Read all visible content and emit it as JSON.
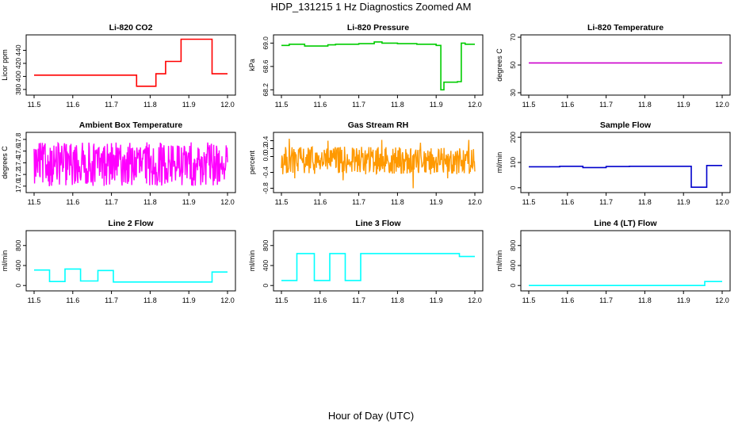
{
  "figure": {
    "title": "HDP_131215  1 Hz Diagnostics Zoomed AM",
    "xlabel": "Hour of Day (UTC)"
  },
  "chart_data": [
    {
      "type": "line",
      "title": "Li-820 CO2",
      "ylabel": "Licor ppm",
      "color": "#ff0000",
      "xlim": [
        11.5,
        12.0
      ],
      "xticks": [
        "11.5",
        "11.6",
        "11.7",
        "11.8",
        "11.9",
        "12.0"
      ],
      "ylim": [
        375,
        460
      ],
      "yticks": [
        "380",
        "400",
        "420",
        "440"
      ],
      "style": "steps",
      "x": [
        11.5,
        11.765,
        11.765,
        11.815,
        11.815,
        11.84,
        11.84,
        11.88,
        11.88,
        11.96,
        11.96,
        12.0
      ],
      "y": [
        402,
        402,
        385,
        385,
        404,
        404,
        423,
        423,
        457,
        457,
        404,
        404
      ]
    },
    {
      "type": "line",
      "title": "Li-820 Pressure",
      "ylabel": "kPa",
      "color": "#00cc00",
      "xlim": [
        11.5,
        12.0
      ],
      "xticks": [
        "11.5",
        "11.6",
        "11.7",
        "11.8",
        "11.9",
        "12.0"
      ],
      "ylim": [
        68.15,
        69.1
      ],
      "yticks": [
        "68.2",
        "68.6",
        "69.0"
      ],
      "style": "steps",
      "x": [
        11.5,
        11.52,
        11.52,
        11.56,
        11.56,
        11.62,
        11.62,
        11.64,
        11.64,
        11.7,
        11.7,
        11.74,
        11.74,
        11.76,
        11.76,
        11.8,
        11.8,
        11.85,
        11.85,
        11.9,
        11.9,
        11.912,
        11.912,
        11.92,
        11.92,
        11.955,
        11.955,
        11.965,
        11.965,
        11.975,
        11.975,
        12.0
      ],
      "y": [
        68.96,
        68.96,
        68.98,
        68.98,
        68.95,
        68.95,
        68.97,
        68.97,
        68.98,
        68.98,
        68.99,
        68.99,
        69.02,
        69.02,
        69.0,
        69.0,
        68.99,
        68.99,
        68.98,
        68.98,
        68.96,
        68.96,
        68.2,
        68.2,
        68.33,
        68.33,
        68.34,
        68.34,
        69.0,
        69.0,
        68.98,
        68.98
      ]
    },
    {
      "type": "line",
      "title": "Li-820 Temperature",
      "ylabel": "degrees C",
      "color": "#cc00cc",
      "xlim": [
        11.5,
        12.0
      ],
      "xticks": [
        "11.5",
        "11.6",
        "11.7",
        "11.8",
        "11.9",
        "12.0"
      ],
      "ylim": [
        30,
        70
      ],
      "yticks": [
        "30",
        "50",
        "70"
      ],
      "style": "line",
      "x": [
        11.5,
        12.0
      ],
      "y": [
        51.5,
        51.5
      ]
    },
    {
      "type": "line",
      "title": "Ambient Box Temperature",
      "ylabel": "degrees C",
      "color": "#ff00ff",
      "xlim": [
        11.5,
        12.0
      ],
      "xticks": [
        "11.5",
        "11.6",
        "11.7",
        "11.8",
        "11.9",
        "12.0"
      ],
      "ylim": [
        16.93,
        17.88
      ],
      "yticks": [
        "17.0",
        "17.2",
        "17.4",
        "17.6",
        "17.8"
      ],
      "style": "noise",
      "x": [
        11.5,
        12.0
      ],
      "y": [
        17.3,
        17.3
      ],
      "noise_range": [
        17.0,
        17.75
      ]
    },
    {
      "type": "line",
      "title": "Gas Stream RH",
      "ylabel": "percent",
      "color": "#ff9900",
      "xlim": [
        11.5,
        12.0
      ],
      "xticks": [
        "11.5",
        "11.6",
        "11.7",
        "11.8",
        "11.9",
        "12.0"
      ],
      "ylim": [
        -0.85,
        0.55
      ],
      "yticks": [
        "-0.8",
        "-0.4",
        "0.0",
        "0.2",
        "0.4"
      ],
      "style": "noise",
      "x": [
        11.5,
        12.0
      ],
      "y": [
        -0.1,
        -0.1
      ],
      "noise_range": [
        -0.45,
        0.25
      ],
      "spikes": [
        [
          11.52,
          0.45
        ],
        [
          11.535,
          -0.55
        ],
        [
          11.62,
          0.4
        ],
        [
          11.66,
          -0.6
        ],
        [
          11.76,
          0.42
        ],
        [
          11.84,
          -0.8
        ],
        [
          11.86,
          0.35
        ],
        [
          11.93,
          -0.55
        ],
        [
          11.985,
          0.42
        ]
      ]
    },
    {
      "type": "line",
      "title": "Sample Flow",
      "ylabel": "ml/min",
      "color": "#0000cc",
      "xlim": [
        11.5,
        12.0
      ],
      "xticks": [
        "11.5",
        "11.6",
        "11.7",
        "11.8",
        "11.9",
        "12.0"
      ],
      "ylim": [
        -10,
        210
      ],
      "yticks": [
        "0",
        "100",
        "200"
      ],
      "style": "steps",
      "x": [
        11.5,
        11.58,
        11.58,
        11.64,
        11.64,
        11.7,
        11.7,
        11.76,
        11.76,
        11.92,
        11.92,
        11.96,
        11.96,
        12.0
      ],
      "y": [
        83,
        83,
        85,
        85,
        80,
        80,
        84,
        84,
        85,
        85,
        2,
        2,
        88,
        88
      ]
    },
    {
      "type": "line",
      "title": "Line 2 Flow",
      "ylabel": "ml/min",
      "color": "#00ffff",
      "xlim": [
        11.5,
        12.0
      ],
      "xticks": [
        "11.5",
        "11.6",
        "11.7",
        "11.8",
        "11.9",
        "12.0"
      ],
      "ylim": [
        -60,
        1050
      ],
      "yticks": [
        "0",
        "400",
        "800"
      ],
      "style": "steps",
      "x": [
        11.5,
        11.54,
        11.54,
        11.58,
        11.58,
        11.62,
        11.62,
        11.665,
        11.665,
        11.705,
        11.705,
        11.96,
        11.96,
        12.0
      ],
      "y": [
        310,
        310,
        80,
        80,
        330,
        330,
        90,
        90,
        300,
        300,
        70,
        70,
        270,
        270
      ]
    },
    {
      "type": "line",
      "title": "Line 3 Flow",
      "ylabel": "ml/min",
      "color": "#00ffff",
      "xlim": [
        11.5,
        12.0
      ],
      "xticks": [
        "11.5",
        "11.6",
        "11.7",
        "11.8",
        "11.9",
        "12.0"
      ],
      "ylim": [
        -60,
        1050
      ],
      "yticks": [
        "0",
        "400",
        "800"
      ],
      "style": "steps",
      "x": [
        11.5,
        11.54,
        11.54,
        11.585,
        11.585,
        11.625,
        11.625,
        11.665,
        11.665,
        11.705,
        11.705,
        11.96,
        11.96,
        12.0
      ],
      "y": [
        100,
        100,
        640,
        640,
        100,
        100,
        640,
        640,
        100,
        100,
        640,
        640,
        580,
        580
      ]
    },
    {
      "type": "line",
      "title": "Line 4 (LT) Flow",
      "ylabel": "ml/min",
      "color": "#00ffff",
      "xlim": [
        11.5,
        12.0
      ],
      "xticks": [
        "11.5",
        "11.6",
        "11.7",
        "11.8",
        "11.9",
        "12.0"
      ],
      "ylim": [
        -60,
        1050
      ],
      "yticks": [
        "0",
        "400",
        "800"
      ],
      "style": "steps",
      "x": [
        11.5,
        11.955,
        11.955,
        12.0
      ],
      "y": [
        0,
        0,
        80,
        80
      ]
    }
  ]
}
